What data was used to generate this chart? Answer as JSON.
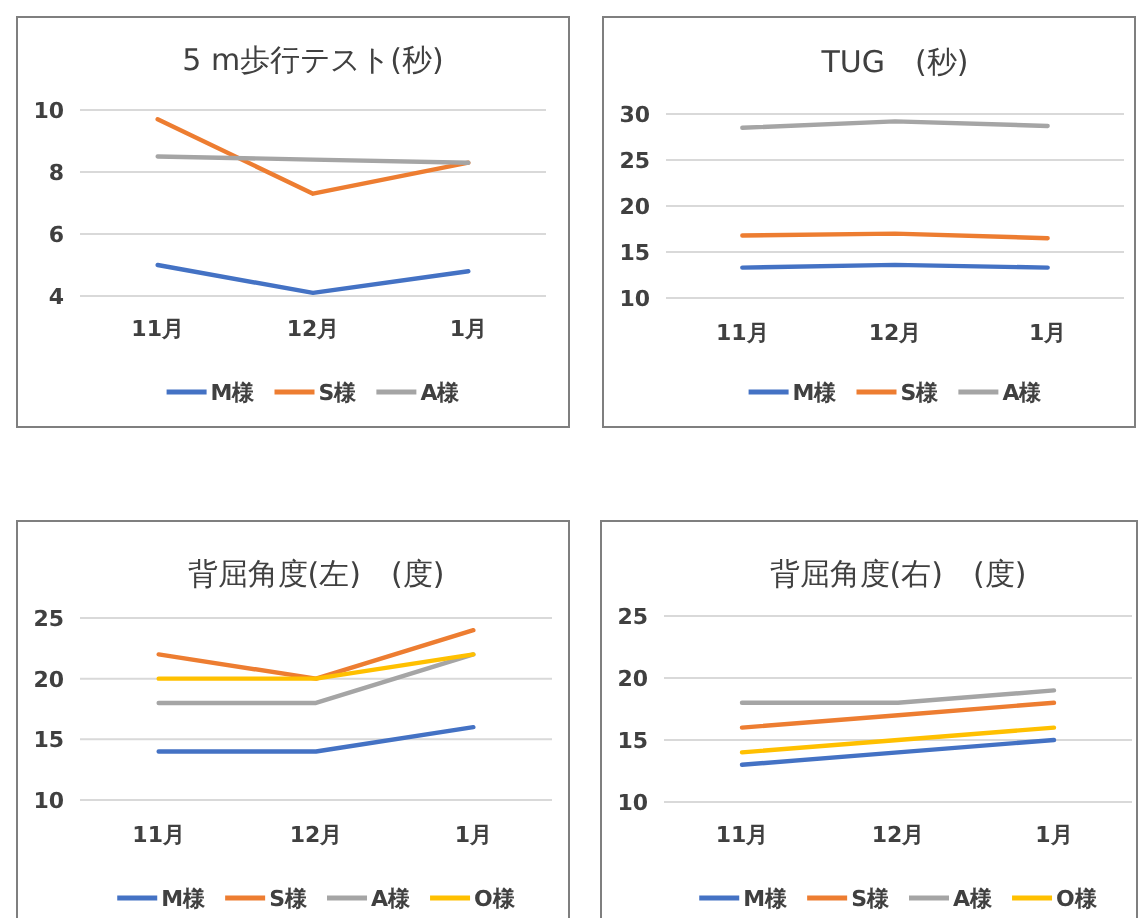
{
  "chart_data": [
    {
      "type": "line",
      "title": "5 m歩行テスト(秒)",
      "categories": [
        "11月",
        "12月",
        "1月"
      ],
      "ylim": [
        4,
        10
      ],
      "yticks": [
        4,
        6,
        8,
        10
      ],
      "grid": "y",
      "legend": "bottom",
      "marker": "none",
      "series": [
        {
          "name": "M様",
          "color": "#4472c4",
          "values": [
            5.0,
            4.1,
            4.8
          ]
        },
        {
          "name": "S様",
          "color": "#ed7d31",
          "values": [
            9.7,
            7.3,
            8.3
          ]
        },
        {
          "name": "A様",
          "color": "#a5a5a5",
          "values": [
            8.5,
            8.4,
            8.3
          ]
        }
      ]
    },
    {
      "type": "line",
      "title": "TUG　(秒)",
      "categories": [
        "11月",
        "12月",
        "1月"
      ],
      "ylim": [
        10,
        30
      ],
      "yticks": [
        10,
        15,
        20,
        25,
        30
      ],
      "grid": "y",
      "legend": "bottom",
      "marker": "none",
      "series": [
        {
          "name": "M様",
          "color": "#4472c4",
          "values": [
            13.3,
            13.6,
            13.3
          ]
        },
        {
          "name": "S様",
          "color": "#ed7d31",
          "values": [
            16.8,
            17.0,
            16.5
          ]
        },
        {
          "name": "A様",
          "color": "#a5a5a5",
          "values": [
            28.5,
            29.2,
            28.7
          ]
        }
      ]
    },
    {
      "type": "line",
      "title": "背屈角度(左)　(度)",
      "categories": [
        "11月",
        "12月",
        "1月"
      ],
      "ylim": [
        10,
        25
      ],
      "yticks": [
        10,
        15,
        20,
        25
      ],
      "grid": "y",
      "legend": "bottom",
      "marker": "none",
      "series": [
        {
          "name": "M様",
          "color": "#4472c4",
          "values": [
            14,
            14,
            16
          ]
        },
        {
          "name": "S様",
          "color": "#ed7d31",
          "values": [
            22,
            20,
            24
          ]
        },
        {
          "name": "A様",
          "color": "#a5a5a5",
          "values": [
            18,
            18,
            22
          ]
        },
        {
          "name": "O様",
          "color": "#ffc000",
          "values": [
            20,
            20,
            22
          ]
        }
      ]
    },
    {
      "type": "line",
      "title": "背屈角度(右)　(度)",
      "categories": [
        "11月",
        "12月",
        "1月"
      ],
      "ylim": [
        10,
        25
      ],
      "yticks": [
        10,
        15,
        20,
        25
      ],
      "grid": "y",
      "legend": "bottom",
      "marker": "none",
      "series": [
        {
          "name": "M様",
          "color": "#4472c4",
          "values": [
            13,
            14,
            15
          ]
        },
        {
          "name": "S様",
          "color": "#ed7d31",
          "values": [
            16,
            17,
            18
          ]
        },
        {
          "name": "A様",
          "color": "#a5a5a5",
          "values": [
            18,
            18,
            19
          ]
        },
        {
          "name": "O様",
          "color": "#ffc000",
          "values": [
            14,
            15,
            16
          ]
        }
      ]
    }
  ]
}
